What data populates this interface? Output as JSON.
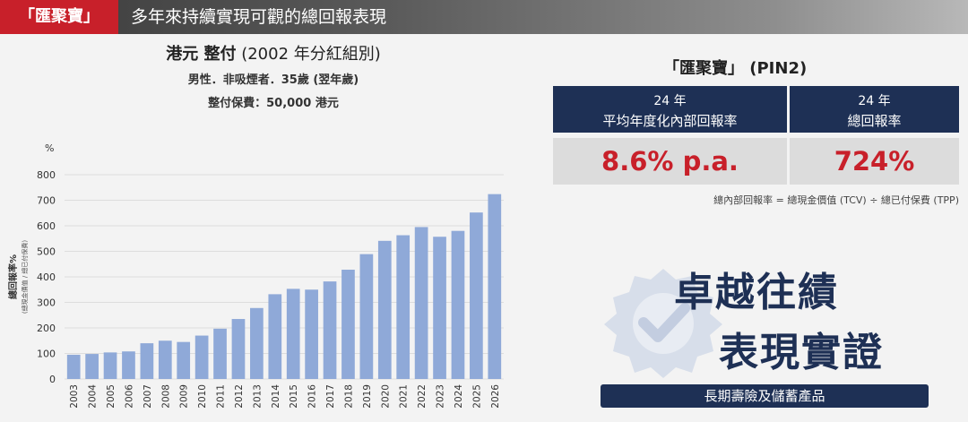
{
  "header": {
    "brand_tag": "「匯聚寶」",
    "title": "多年來持續實現可觀的總回報表現"
  },
  "chart_heading": {
    "title_bold": "港元 整付",
    "title_rest": " (2002 年分紅組別)",
    "line2": "男性．非吸煙者．35歲 (翌年歲)",
    "line3": "整付保費：50,000 港元"
  },
  "chart_data": {
    "type": "bar",
    "unit_label": "%",
    "ylabel": "總回報率%",
    "ylabel_sub": "(總現金價值 / 總已付保費)",
    "ylim": [
      0,
      800
    ],
    "yticks": [
      0,
      100,
      200,
      300,
      400,
      500,
      600,
      700,
      800
    ],
    "grid": true,
    "bar_color": "#8fa9d8",
    "categories": [
      "2003",
      "2004",
      "2005",
      "2006",
      "2007",
      "2008",
      "2009",
      "2010",
      "2011",
      "2012",
      "2013",
      "2014",
      "2015",
      "2016",
      "2017",
      "2018",
      "2019",
      "2020",
      "2021",
      "2022",
      "2023",
      "2024",
      "2025",
      "2026"
    ],
    "values": [
      95,
      98,
      104,
      108,
      140,
      150,
      145,
      170,
      197,
      235,
      278,
      332,
      353,
      350,
      382,
      428,
      489,
      541,
      563,
      595,
      557,
      580,
      652,
      724
    ]
  },
  "right_panel": {
    "title": "「匯聚寶」 (PIN2)",
    "kpi1": {
      "line1": "24 年",
      "line2": "平均年度化內部回報率",
      "value": "8.6% p.a."
    },
    "kpi2": {
      "line1": "24 年",
      "line2": "總回報率",
      "value": "724%"
    },
    "formula": "總內部回報率 = 總現金價值 (TCV) ÷ 總已付保費 (TPP)"
  },
  "promo": {
    "line1": "卓越往績",
    "line2": "表現實證",
    "ribbon": "長期壽險及儲蓄產品"
  },
  "colors": {
    "brand_red": "#c8202a",
    "navy": "#1e3055",
    "bar": "#8fa9d8"
  }
}
